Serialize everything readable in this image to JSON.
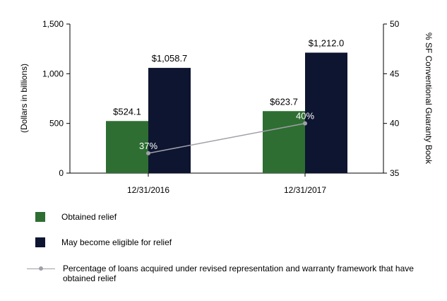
{
  "chart_data": {
    "type": "bar",
    "categories": [
      "12/31/2016",
      "12/31/2017"
    ],
    "series": [
      {
        "name": "Obtained relief",
        "values": [
          524.1,
          623.7
        ],
        "labels": [
          "$524.1",
          "$623.7"
        ],
        "color": "#2e6e32"
      },
      {
        "name": "May become eligible for relief",
        "values": [
          1058.7,
          1212.0
        ],
        "labels": [
          "$1,058.7",
          "$1,212.0"
        ],
        "color": "#0d1530"
      }
    ],
    "line_series": {
      "name": "Percentage of loans acquired under revised representation and warranty framework that have obtained relief",
      "values": [
        37,
        40
      ],
      "labels": [
        "37%",
        "40%"
      ],
      "color": "#a0a0a8",
      "axis": "right"
    },
    "ylabel": "(Dollars in billions)",
    "ylim": [
      0,
      1500
    ],
    "yticks": [
      "0",
      "500",
      "1,000",
      "1,500"
    ],
    "ytick_values": [
      0,
      500,
      1000,
      1500
    ],
    "y2label": "% SF Conventional Guaranty Book",
    "y2lim": [
      35,
      50
    ],
    "y2ticks": [
      "35",
      "40",
      "45",
      "50"
    ],
    "y2tick_values": [
      35,
      40,
      45,
      50
    ],
    "grid": false,
    "legend": "bottom"
  }
}
